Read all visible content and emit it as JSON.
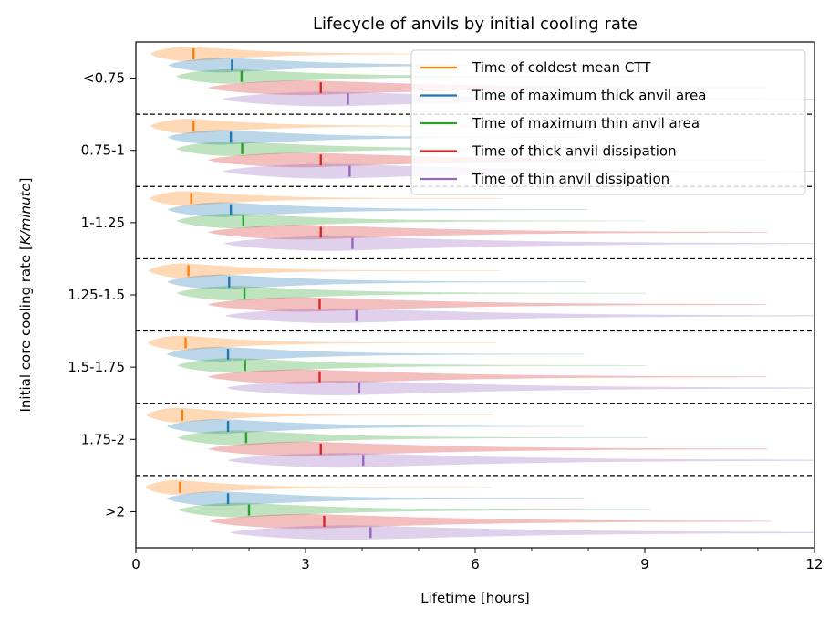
{
  "chart_data": {
    "type": "violin",
    "title": "Lifecycle of anvils by initial cooling rate",
    "xlabel": "Lifetime [hours]",
    "ylabel_prefix": "Initial core cooling rate [",
    "ylabel_unit": "K/minute",
    "ylabel_suffix": "]",
    "xlim": [
      0,
      12
    ],
    "xticks": [
      "0",
      "3",
      "6",
      "9",
      "12"
    ],
    "categories": [
      ">2",
      "1.75-2",
      "1.5-1.75",
      "1.25-1.5",
      "1-1.25",
      "0.75-1",
      "<0.75"
    ],
    "series": [
      {
        "name": "Time of coldest mean CTT",
        "color": "#ff7f0e",
        "times": [
          0.78,
          0.82,
          0.88,
          0.93,
          0.98,
          1.02,
          1.02
        ]
      },
      {
        "name": "Time of maximum thick anvil area",
        "color": "#1f77b4",
        "times": [
          1.63,
          1.63,
          1.63,
          1.65,
          1.68,
          1.68,
          1.7
        ]
      },
      {
        "name": "Time of maximum thin anvil area",
        "color": "#2ca02c",
        "times": [
          2.0,
          1.95,
          1.93,
          1.92,
          1.9,
          1.88,
          1.87
        ]
      },
      {
        "name": "Time of thick anvil dissipation",
        "color": "#d62728",
        "times": [
          3.33,
          3.27,
          3.25,
          3.25,
          3.27,
          3.27,
          3.27
        ]
      },
      {
        "name": "Time of thin anvil dissipation",
        "color": "#9467bd",
        "times": [
          4.15,
          4.02,
          3.95,
          3.9,
          3.83,
          3.78,
          3.75
        ]
      }
    ],
    "legend": "upper right",
    "grid": false
  }
}
